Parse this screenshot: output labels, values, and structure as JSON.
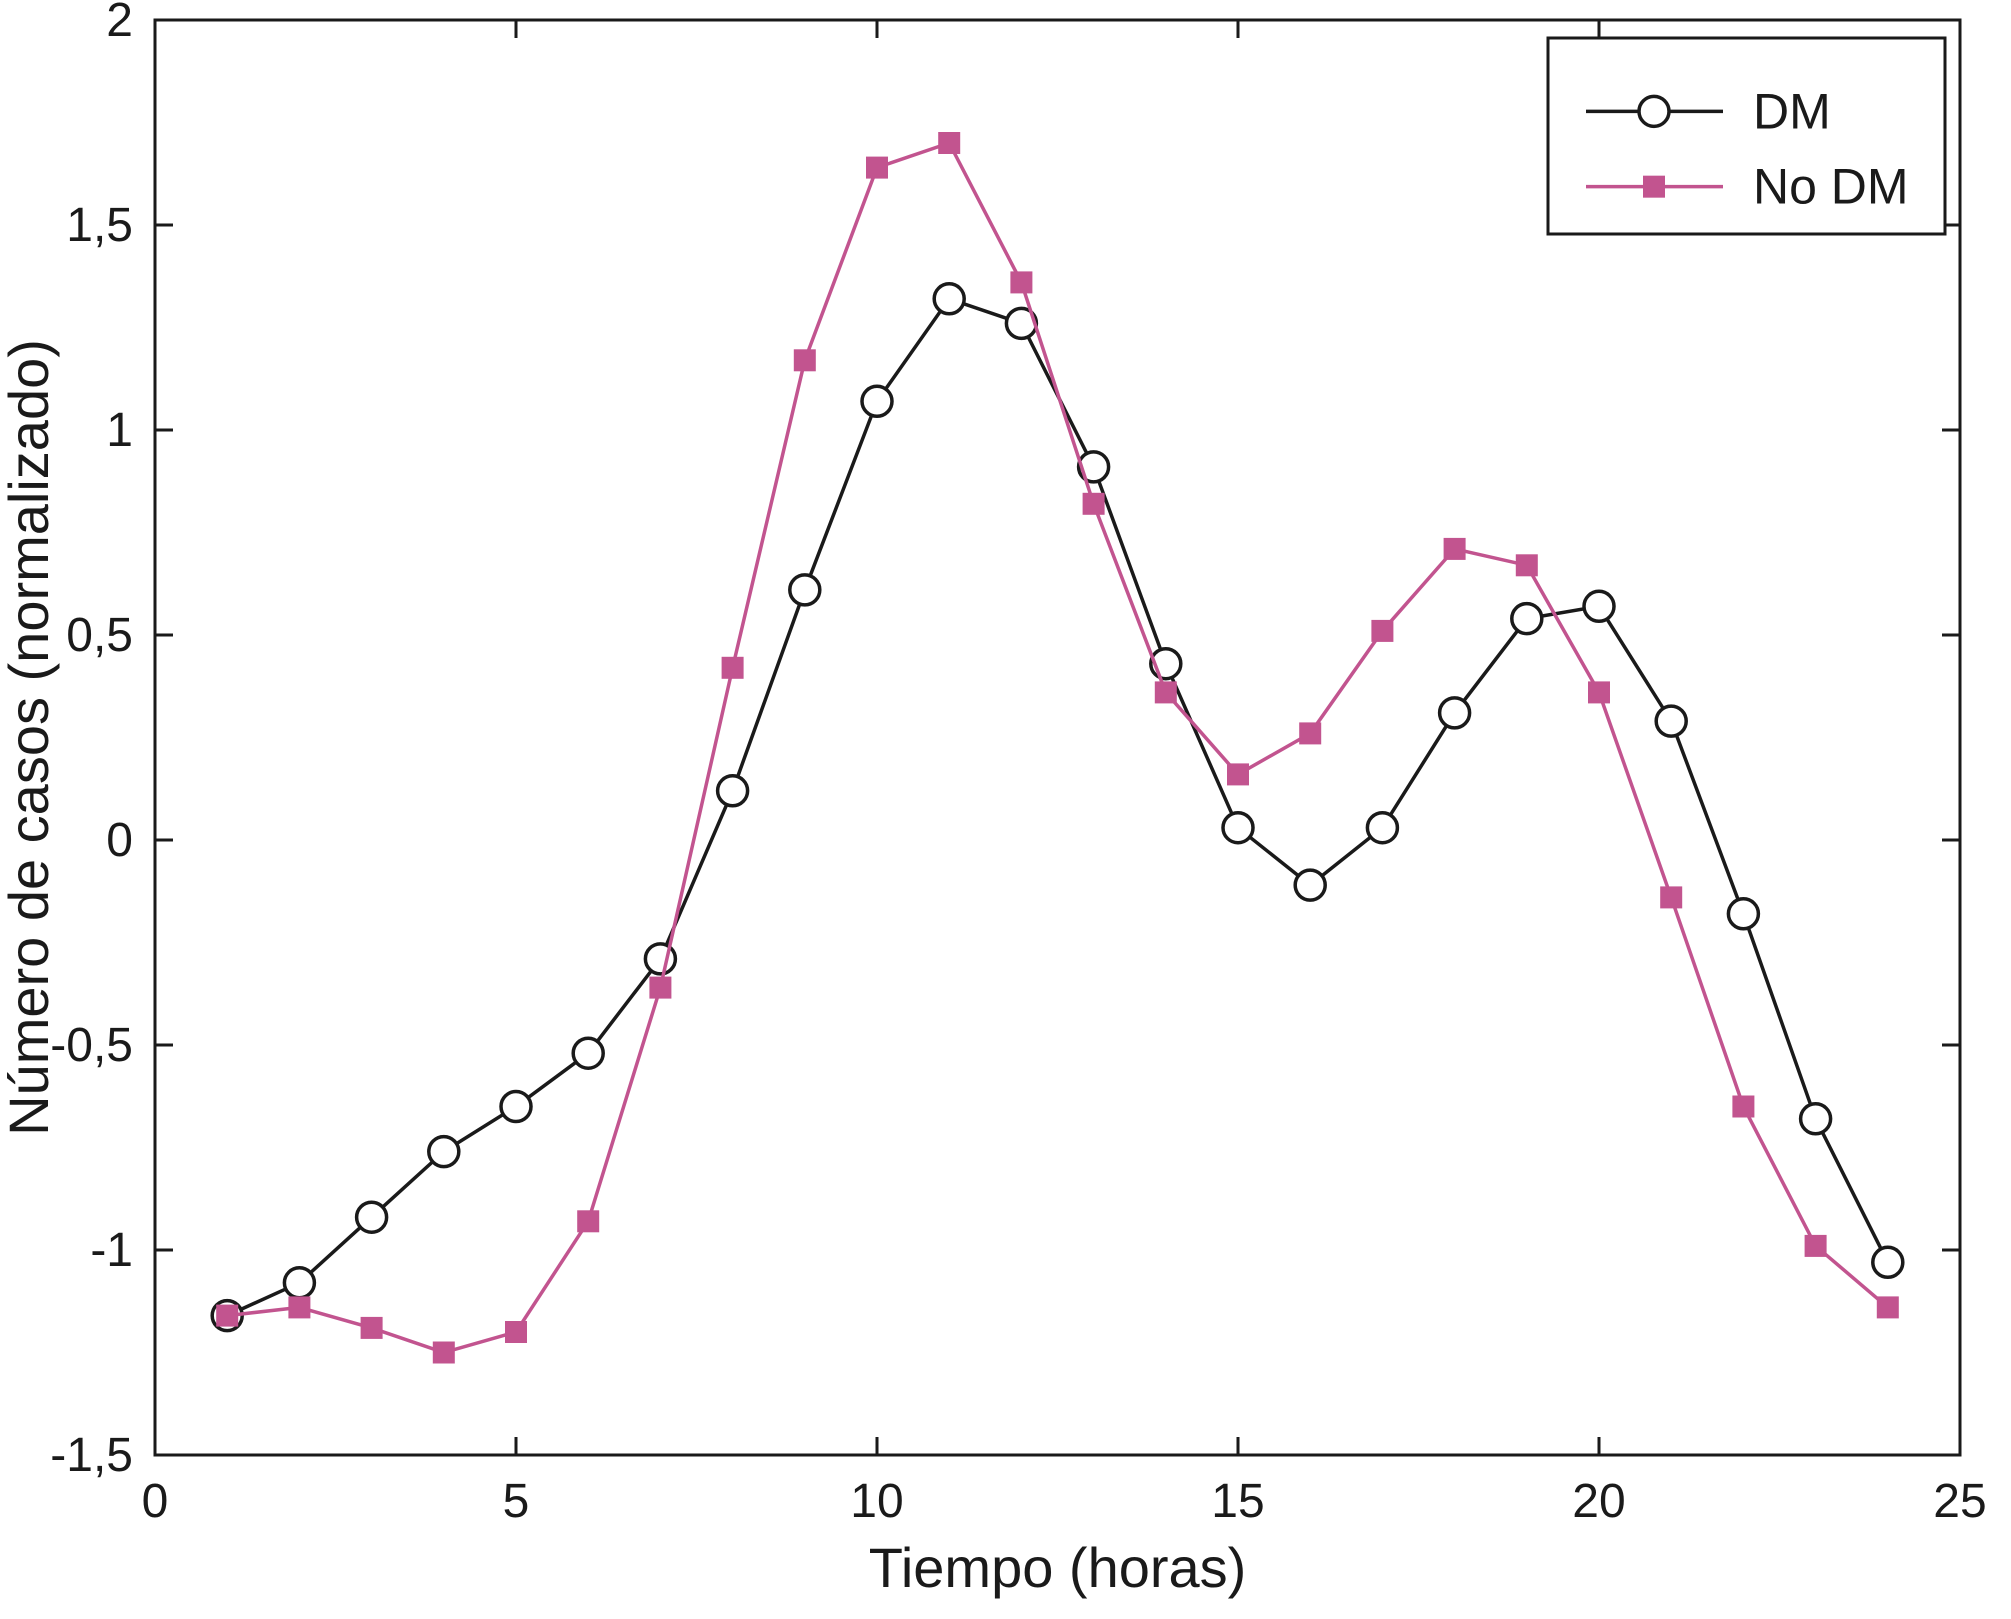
{
  "figure": {
    "background": "#ffffff",
    "axis_color": "#1a1a1a"
  },
  "chart_data": {
    "type": "line",
    "title": "",
    "xlabel": "Tiempo (horas)",
    "ylabel": "Número de casos (normalizado)",
    "xlim": [
      0,
      25
    ],
    "ylim": [
      -1.5,
      2
    ],
    "xticks": [
      0,
      5,
      10,
      15,
      20,
      25
    ],
    "xtick_labels": [
      "0",
      "5",
      "10",
      "15",
      "20",
      "25"
    ],
    "yticks": [
      -1.5,
      -1,
      -0.5,
      0,
      0.5,
      1,
      1.5,
      2
    ],
    "ytick_labels": [
      "-1,5",
      "-1",
      "-0,5",
      "0",
      "0,5",
      "1",
      "1,5",
      "2"
    ],
    "grid": false,
    "legend_position": "top-right",
    "x": [
      1,
      2,
      3,
      4,
      5,
      6,
      7,
      8,
      9,
      10,
      11,
      12,
      13,
      14,
      15,
      16,
      17,
      18,
      19,
      20,
      21,
      22,
      23,
      24
    ],
    "series": [
      {
        "name": "DM",
        "color": "#1a1a1a",
        "marker": "circle-open",
        "values": [
          -1.16,
          -1.08,
          -0.92,
          -0.76,
          -0.65,
          -0.52,
          -0.29,
          0.12,
          0.61,
          1.07,
          1.32,
          1.26,
          0.91,
          0.43,
          0.03,
          -0.11,
          0.03,
          0.31,
          0.54,
          0.57,
          0.29,
          -0.18,
          -0.68,
          -1.03
        ]
      },
      {
        "name": "No DM",
        "color": "#c2548f",
        "marker": "square-filled",
        "values": [
          -1.16,
          -1.14,
          -1.19,
          -1.25,
          -1.2,
          -0.93,
          -0.36,
          0.42,
          1.17,
          1.64,
          1.7,
          1.36,
          0.82,
          0.36,
          0.16,
          0.26,
          0.51,
          0.71,
          0.67,
          0.36,
          -0.14,
          -0.65,
          -0.99,
          -1.14
        ]
      }
    ]
  }
}
